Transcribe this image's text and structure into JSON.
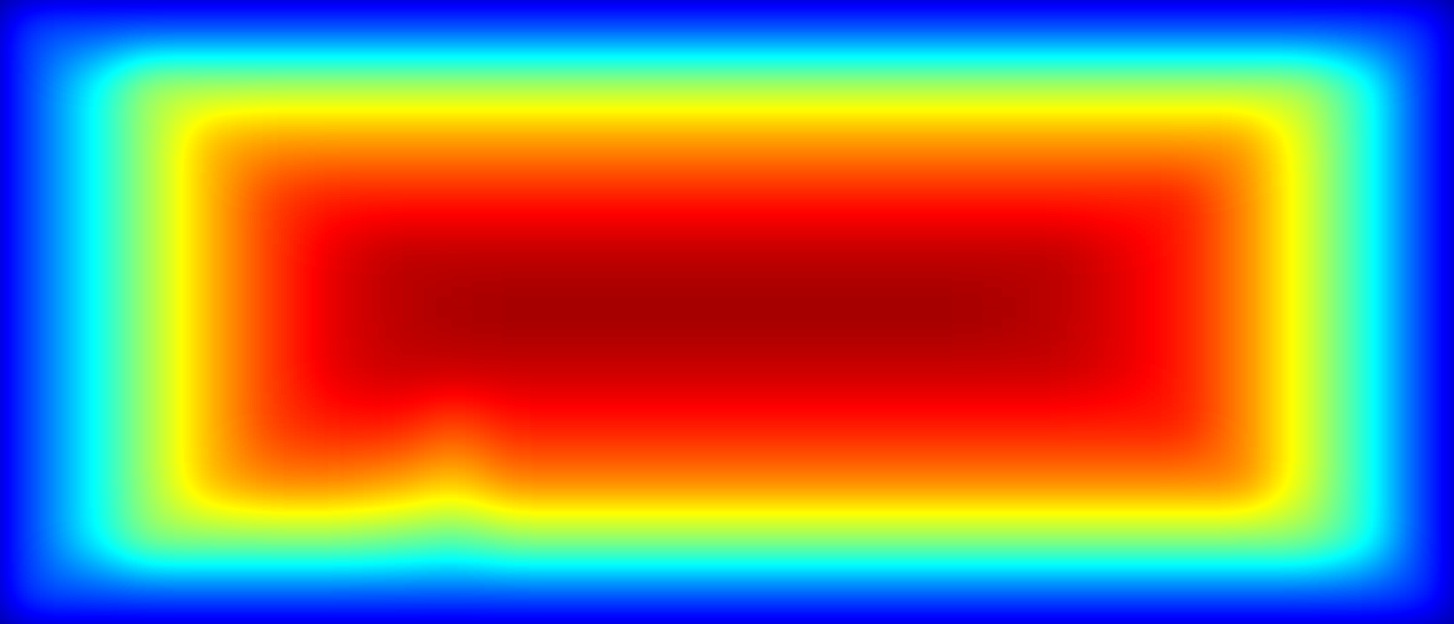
{
  "chart_data": {
    "type": "contour",
    "tick_labels": false,
    "zlim": [
      0,
      1
    ],
    "cells": [
      [
        0.2,
        0.2,
        0.2,
        0.2,
        0.2,
        0.2,
        0.2,
        0.2,
        0.2,
        0.2,
        0.2,
        0.2,
        0.2,
        0.2,
        0.2,
        0.2,
        0.2,
        0.2,
        0.2,
        0.2,
        0.2,
        0.2,
        0.2,
        0.18
      ],
      [
        0.2,
        0.37,
        0.55,
        0.55,
        0.55,
        0.55,
        0.55,
        0.55,
        0.55,
        0.55,
        0.55,
        0.55,
        0.55,
        0.55,
        0.55,
        0.55,
        0.55,
        0.55,
        0.55,
        0.55,
        0.55,
        0.55,
        0.42,
        0.18
      ],
      [
        0.2,
        0.37,
        0.55,
        0.7,
        0.73,
        0.73,
        0.73,
        0.73,
        0.73,
        0.73,
        0.73,
        0.73,
        0.73,
        0.73,
        0.73,
        0.73,
        0.73,
        0.73,
        0.73,
        0.73,
        0.73,
        0.6,
        0.42,
        0.18
      ],
      [
        0.2,
        0.37,
        0.55,
        0.7,
        0.82,
        0.85,
        0.85,
        0.85,
        0.85,
        0.85,
        0.85,
        0.85,
        0.85,
        0.85,
        0.85,
        0.85,
        0.85,
        0.85,
        0.85,
        0.85,
        0.75,
        0.6,
        0.42,
        0.18
      ],
      [
        0.2,
        0.37,
        0.55,
        0.7,
        0.82,
        0.9,
        0.94,
        0.94,
        0.94,
        0.94,
        0.94,
        0.94,
        0.94,
        0.94,
        0.94,
        0.94,
        0.94,
        0.94,
        0.9,
        0.85,
        0.75,
        0.6,
        0.42,
        0.18
      ],
      [
        0.2,
        0.37,
        0.55,
        0.7,
        0.82,
        0.9,
        0.94,
        0.96,
        0.97,
        0.97,
        0.97,
        0.97,
        0.97,
        0.97,
        0.97,
        0.97,
        0.96,
        0.94,
        0.9,
        0.85,
        0.75,
        0.6,
        0.42,
        0.18
      ],
      [
        0.2,
        0.37,
        0.55,
        0.7,
        0.82,
        0.9,
        0.93,
        0.93,
        0.93,
        0.93,
        0.93,
        0.93,
        0.93,
        0.93,
        0.93,
        0.93,
        0.93,
        0.93,
        0.9,
        0.85,
        0.75,
        0.6,
        0.42,
        0.18
      ],
      [
        0.2,
        0.37,
        0.55,
        0.7,
        0.82,
        0.85,
        0.85,
        0.8,
        0.85,
        0.85,
        0.85,
        0.85,
        0.85,
        0.85,
        0.85,
        0.85,
        0.85,
        0.85,
        0.85,
        0.85,
        0.75,
        0.6,
        0.42,
        0.18
      ],
      [
        0.2,
        0.37,
        0.55,
        0.7,
        0.75,
        0.75,
        0.72,
        0.68,
        0.75,
        0.75,
        0.75,
        0.75,
        0.75,
        0.75,
        0.75,
        0.75,
        0.75,
        0.75,
        0.75,
        0.75,
        0.75,
        0.6,
        0.42,
        0.18
      ],
      [
        0.2,
        0.37,
        0.52,
        0.52,
        0.52,
        0.52,
        0.5,
        0.47,
        0.52,
        0.52,
        0.52,
        0.52,
        0.52,
        0.52,
        0.52,
        0.52,
        0.52,
        0.52,
        0.52,
        0.52,
        0.52,
        0.52,
        0.42,
        0.18
      ],
      [
        0.2,
        0.2,
        0.2,
        0.2,
        0.2,
        0.2,
        0.2,
        0.2,
        0.2,
        0.2,
        0.2,
        0.2,
        0.2,
        0.2,
        0.2,
        0.2,
        0.2,
        0.2,
        0.2,
        0.2,
        0.2,
        0.2,
        0.2,
        0.18
      ]
    ]
  }
}
